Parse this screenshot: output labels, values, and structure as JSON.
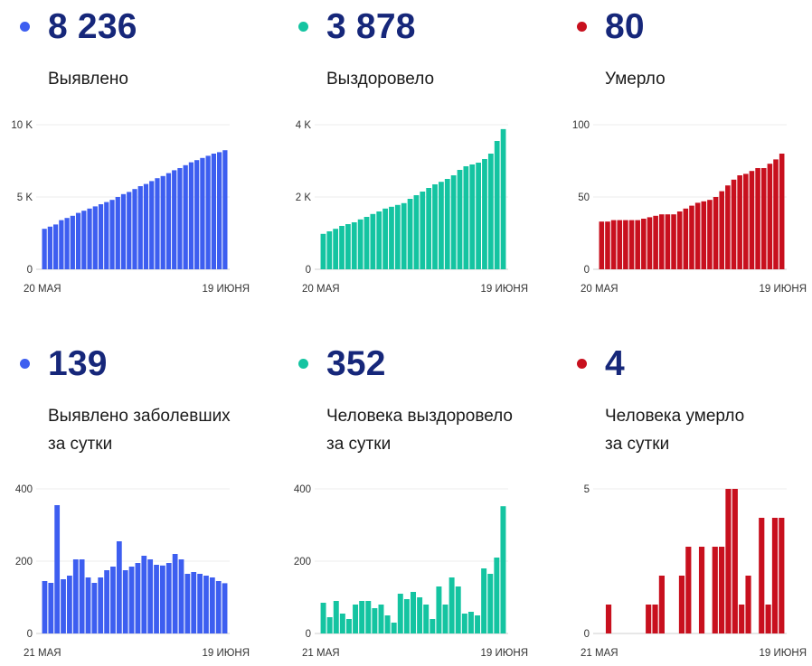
{
  "panels": [
    {
      "id": "detected",
      "value": "8 236",
      "label_lines": [
        "Выявлено"
      ],
      "color": "#3d5ef0",
      "chart_data": {
        "type": "bar",
        "y_ticks": [
          {
            "value": 0,
            "label": "0"
          },
          {
            "value": 5000,
            "label": "5 K"
          },
          {
            "value": 10000,
            "label": "10 K"
          }
        ],
        "ylim": [
          0,
          10000
        ],
        "x_labels": [
          "20 МАЯ",
          "19 ИЮНЯ"
        ],
        "values": [
          2800,
          2950,
          3100,
          3400,
          3550,
          3700,
          3900,
          4050,
          4200,
          4350,
          4500,
          4650,
          4800,
          5000,
          5200,
          5350,
          5550,
          5750,
          5900,
          6100,
          6300,
          6450,
          6650,
          6850,
          7000,
          7200,
          7400,
          7550,
          7700,
          7850,
          8000,
          8100,
          8236
        ],
        "grid": true
      }
    },
    {
      "id": "recovered",
      "value": "3 878",
      "label_lines": [
        "Выздоровело"
      ],
      "color": "#14c4a1",
      "chart_data": {
        "type": "bar",
        "y_ticks": [
          {
            "value": 0,
            "label": "0"
          },
          {
            "value": 2000,
            "label": "2 K"
          },
          {
            "value": 4000,
            "label": "4 K"
          }
        ],
        "ylim": [
          0,
          4000
        ],
        "x_labels": [
          "20 МАЯ",
          "19 ИЮНЯ"
        ],
        "values": [
          980,
          1050,
          1120,
          1200,
          1250,
          1300,
          1380,
          1450,
          1530,
          1600,
          1680,
          1730,
          1780,
          1830,
          1950,
          2050,
          2150,
          2250,
          2350,
          2420,
          2500,
          2600,
          2750,
          2850,
          2900,
          2950,
          3050,
          3200,
          3550,
          3878
        ],
        "grid": true
      }
    },
    {
      "id": "died",
      "value": "80",
      "label_lines": [
        "Умерло"
      ],
      "color": "#c8101e",
      "chart_data": {
        "type": "bar",
        "y_ticks": [
          {
            "value": 0,
            "label": "0"
          },
          {
            "value": 50,
            "label": "50"
          },
          {
            "value": 100,
            "label": "100"
          }
        ],
        "ylim": [
          0,
          100
        ],
        "x_labels": [
          "20 МАЯ",
          "19 ИЮНЯ"
        ],
        "values": [
          33,
          33,
          34,
          34,
          34,
          34,
          34,
          35,
          36,
          37,
          38,
          38,
          38,
          40,
          42,
          44,
          46,
          47,
          48,
          50,
          54,
          58,
          62,
          65,
          66,
          68,
          70,
          70,
          73,
          76,
          80
        ],
        "grid": true
      }
    },
    {
      "id": "detected-daily",
      "value": "139",
      "label_lines": [
        "Выявлено заболевших",
        "за сутки"
      ],
      "color": "#3d5ef0",
      "chart_data": {
        "type": "bar",
        "y_ticks": [
          {
            "value": 0,
            "label": "0"
          },
          {
            "value": 200,
            "label": "200"
          },
          {
            "value": 400,
            "label": "400"
          }
        ],
        "ylim": [
          0,
          400
        ],
        "x_labels": [
          "21 МАЯ",
          "19 ИЮНЯ"
        ],
        "values": [
          145,
          140,
          355,
          150,
          160,
          205,
          205,
          155,
          140,
          155,
          175,
          185,
          255,
          175,
          185,
          195,
          215,
          205,
          190,
          188,
          195,
          220,
          205,
          165,
          170,
          165,
          160,
          155,
          145,
          139
        ],
        "grid": true
      }
    },
    {
      "id": "recovered-daily",
      "value": "352",
      "label_lines": [
        "Человека выздоровело",
        "за сутки"
      ],
      "color": "#14c4a1",
      "chart_data": {
        "type": "bar",
        "y_ticks": [
          {
            "value": 0,
            "label": "0"
          },
          {
            "value": 200,
            "label": "200"
          },
          {
            "value": 400,
            "label": "400"
          }
        ],
        "ylim": [
          0,
          400
        ],
        "x_labels": [
          "21 МАЯ",
          "19 ИЮНЯ"
        ],
        "values": [
          85,
          45,
          90,
          55,
          40,
          80,
          90,
          90,
          70,
          80,
          50,
          30,
          110,
          95,
          115,
          100,
          80,
          40,
          130,
          80,
          155,
          130,
          55,
          60,
          50,
          180,
          165,
          210,
          352
        ],
        "grid": true
      }
    },
    {
      "id": "died-daily",
      "value": "4",
      "label_lines": [
        "Человека умерло",
        "за сутки"
      ],
      "color": "#c8101e",
      "chart_data": {
        "type": "bar",
        "y_ticks": [
          {
            "value": 0,
            "label": "0"
          },
          {
            "value": 5,
            "label": "5"
          }
        ],
        "ylim": [
          0,
          5
        ],
        "x_labels": [
          "21 МАЯ",
          "19 ИЮНЯ"
        ],
        "values": [
          0,
          1,
          0,
          0,
          0,
          0,
          0,
          1,
          1,
          2,
          0,
          0,
          2,
          3,
          0,
          3,
          0,
          3,
          3,
          5,
          5,
          1,
          2,
          0,
          4,
          1,
          4,
          4
        ],
        "grid": true
      }
    }
  ]
}
